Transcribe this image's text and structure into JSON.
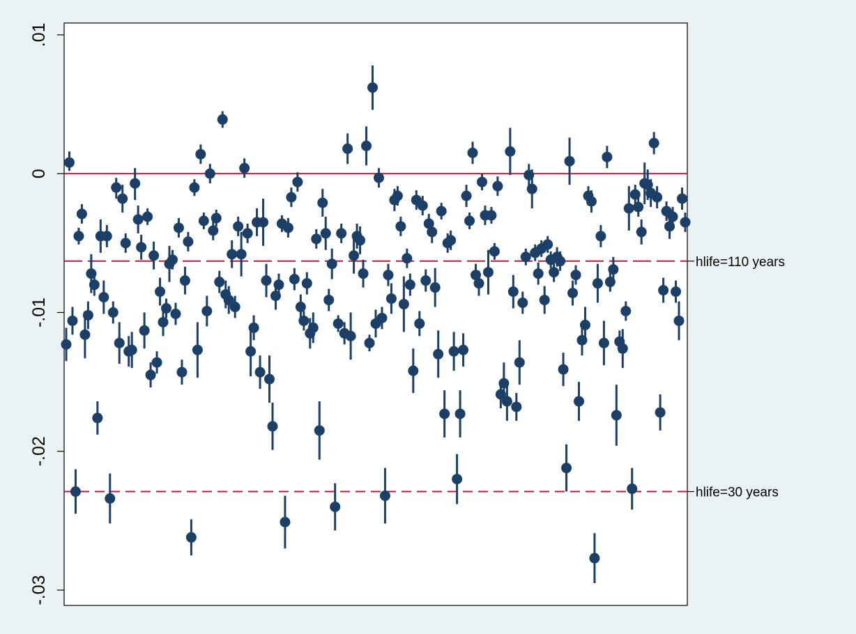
{
  "chart_data": {
    "type": "scatter",
    "title": "",
    "xlabel": "",
    "ylabel": "",
    "ylim": [
      -0.032,
      0.0105
    ],
    "yticks": [
      {
        "value": 0.01,
        "label": ".01"
      },
      {
        "value": 0,
        "label": "0"
      },
      {
        "value": -0.01,
        "label": "-.01"
      },
      {
        "value": -0.02,
        "label": "-.02"
      },
      {
        "value": -0.03,
        "label": "-.03"
      }
    ],
    "xticks_shown": false,
    "grid": false,
    "legend": "none",
    "marker_style": "filled circle with vertical confidence-interval line",
    "colors": {
      "background": "#eaf2f3",
      "plot_area": "#ffffff",
      "marker": "#1b3f66",
      "reference_lines": "#c0143c"
    },
    "reference_lines": [
      {
        "y": 0,
        "style": "solid",
        "label": ""
      },
      {
        "y": -0.0063,
        "style": "long-dash",
        "label": "hlife=110 years"
      },
      {
        "y": -0.0229,
        "style": "dash",
        "label": "hlife=30 years"
      }
    ],
    "points": [
      {
        "y": -0.0123,
        "lo": -0.0135,
        "hi": -0.0111
      },
      {
        "y": 0.0008,
        "lo": 0.0002,
        "hi": 0.0016
      },
      {
        "y": -0.0106,
        "lo": -0.0116,
        "hi": -0.0096
      },
      {
        "y": -0.0229,
        "lo": -0.0245,
        "hi": -0.0213
      },
      {
        "y": -0.0045,
        "lo": -0.0051,
        "hi": -0.0039
      },
      {
        "y": -0.0029,
        "lo": -0.0036,
        "hi": -0.0022
      },
      {
        "y": -0.0116,
        "lo": -0.0133,
        "hi": -0.0099
      },
      {
        "y": -0.0102,
        "lo": -0.0112,
        "hi": -0.0092
      },
      {
        "y": -0.0072,
        "lo": -0.0086,
        "hi": -0.0058
      },
      {
        "y": -0.008,
        "lo": -0.0088,
        "hi": -0.0072
      },
      {
        "y": -0.0176,
        "lo": -0.0188,
        "hi": -0.0164
      },
      {
        "y": -0.0045,
        "lo": -0.0057,
        "hi": -0.0033
      },
      {
        "y": -0.0089,
        "lo": -0.0101,
        "hi": -0.0077
      },
      {
        "y": -0.0045,
        "lo": -0.0053,
        "hi": -0.0037
      },
      {
        "y": -0.0234,
        "lo": -0.0252,
        "hi": -0.0216
      },
      {
        "y": -0.01,
        "lo": -0.0108,
        "hi": -0.0092
      },
      {
        "y": -0.001,
        "lo": -0.0018,
        "hi": -0.0003
      },
      {
        "y": -0.0122,
        "lo": -0.0137,
        "hi": -0.0107
      },
      {
        "y": -0.0018,
        "lo": -0.0028,
        "hi": -0.0008
      },
      {
        "y": -0.005,
        "lo": -0.0057,
        "hi": -0.0043
      },
      {
        "y": -0.0128,
        "lo": -0.0139,
        "hi": -0.0117
      },
      {
        "y": -0.0127,
        "lo": -0.014,
        "hi": -0.0114
      },
      {
        "y": -0.0007,
        "lo": -0.0019,
        "hi": 0.0004
      },
      {
        "y": -0.0033,
        "lo": -0.0043,
        "hi": -0.0023
      },
      {
        "y": -0.0053,
        "lo": -0.0062,
        "hi": -0.0044
      },
      {
        "y": -0.0113,
        "lo": -0.0126,
        "hi": -0.01
      },
      {
        "y": -0.0031,
        "lo": -0.0037,
        "hi": -0.0025
      },
      {
        "y": -0.0145,
        "lo": -0.0154,
        "hi": -0.0136
      },
      {
        "y": -0.0059,
        "lo": -0.0069,
        "hi": -0.0049
      },
      {
        "y": -0.0136,
        "lo": -0.0144,
        "hi": -0.0128
      },
      {
        "y": -0.0085,
        "lo": -0.0095,
        "hi": -0.0075
      },
      {
        "y": -0.0107,
        "lo": -0.0117,
        "hi": -0.0097
      },
      {
        "y": -0.0097,
        "lo": -0.0104,
        "hi": -0.009
      },
      {
        "y": -0.0065,
        "lo": -0.0078,
        "hi": -0.0052
      },
      {
        "y": -0.0062,
        "lo": -0.0069,
        "hi": -0.0055
      },
      {
        "y": -0.0101,
        "lo": -0.0109,
        "hi": -0.0093
      },
      {
        "y": -0.0039,
        "lo": -0.0046,
        "hi": -0.0032
      },
      {
        "y": -0.0143,
        "lo": -0.0152,
        "hi": -0.0134
      },
      {
        "y": -0.0077,
        "lo": -0.0087,
        "hi": -0.0067
      },
      {
        "y": -0.0049,
        "lo": -0.0056,
        "hi": -0.0042
      },
      {
        "y": -0.0262,
        "lo": -0.0275,
        "hi": -0.0249
      },
      {
        "y": -0.001,
        "lo": -0.0016,
        "hi": -0.0004
      },
      {
        "y": -0.0127,
        "lo": -0.0147,
        "hi": -0.0107
      },
      {
        "y": 0.0014,
        "lo": 0.0007,
        "hi": 0.0021
      },
      {
        "y": -0.0034,
        "lo": -0.004,
        "hi": -0.0028
      },
      {
        "y": -0.0099,
        "lo": -0.011,
        "hi": -0.0088
      },
      {
        "y": 0.0,
        "lo": -0.0007,
        "hi": 0.0007
      },
      {
        "y": -0.0041,
        "lo": -0.0048,
        "hi": -0.0034
      },
      {
        "y": -0.0032,
        "lo": -0.0038,
        "hi": -0.0026
      },
      {
        "y": -0.0078,
        "lo": -0.0086,
        "hi": -0.007
      },
      {
        "y": 0.0039,
        "lo": 0.0033,
        "hi": 0.0045
      },
      {
        "y": -0.0087,
        "lo": -0.0097,
        "hi": -0.0077
      },
      {
        "y": -0.0091,
        "lo": -0.0101,
        "hi": -0.0081
      },
      {
        "y": -0.0058,
        "lo": -0.0068,
        "hi": -0.0048
      },
      {
        "y": -0.0096,
        "lo": -0.0104,
        "hi": -0.0088
      },
      {
        "y": -0.0038,
        "lo": -0.0045,
        "hi": -0.0031
      },
      {
        "y": -0.0058,
        "lo": -0.0074,
        "hi": -0.0042
      },
      {
        "y": 0.0004,
        "lo": -0.0003,
        "hi": 0.0011
      },
      {
        "y": -0.0043,
        "lo": -0.005,
        "hi": -0.0036
      },
      {
        "y": -0.0128,
        "lo": -0.0146,
        "hi": -0.011
      },
      {
        "y": -0.0111,
        "lo": -0.012,
        "hi": -0.0102
      },
      {
        "y": -0.0035,
        "lo": -0.0045,
        "hi": -0.0025
      },
      {
        "y": -0.0143,
        "lo": -0.0155,
        "hi": -0.0131
      },
      {
        "y": -0.0035,
        "lo": -0.0052,
        "hi": -0.0018
      },
      {
        "y": -0.0077,
        "lo": -0.0089,
        "hi": -0.0065
      },
      {
        "y": -0.0148,
        "lo": -0.0165,
        "hi": -0.0131
      },
      {
        "y": -0.0182,
        "lo": -0.0199,
        "hi": -0.0165
      },
      {
        "y": -0.0088,
        "lo": -0.0098,
        "hi": -0.0078
      },
      {
        "y": -0.008,
        "lo": -0.0088,
        "hi": -0.0072
      },
      {
        "y": -0.0036,
        "lo": -0.0042,
        "hi": -0.003
      },
      {
        "y": -0.0251,
        "lo": -0.027,
        "hi": -0.0232
      },
      {
        "y": -0.0039,
        "lo": -0.0046,
        "hi": -0.0032
      },
      {
        "y": -0.0017,
        "lo": -0.0024,
        "hi": -0.001
      },
      {
        "y": -0.0076,
        "lo": -0.0084,
        "hi": -0.0068
      },
      {
        "y": -0.0006,
        "lo": -0.0013,
        "hi": 0.0001
      },
      {
        "y": -0.0096,
        "lo": -0.0105,
        "hi": -0.0087
      },
      {
        "y": -0.0106,
        "lo": -0.0113,
        "hi": -0.0099
      },
      {
        "y": -0.0079,
        "lo": -0.0087,
        "hi": -0.0071
      },
      {
        "y": -0.0115,
        "lo": -0.0126,
        "hi": -0.0104
      },
      {
        "y": -0.0111,
        "lo": -0.0122,
        "hi": -0.01
      },
      {
        "y": -0.0047,
        "lo": -0.0054,
        "hi": -0.004
      },
      {
        "y": -0.0185,
        "lo": -0.0206,
        "hi": -0.0164
      },
      {
        "y": -0.0021,
        "lo": -0.0031,
        "hi": -0.0011
      },
      {
        "y": -0.0043,
        "lo": -0.0055,
        "hi": -0.0031
      },
      {
        "y": -0.0091,
        "lo": -0.0099,
        "hi": -0.0083
      },
      {
        "y": -0.0065,
        "lo": -0.0076,
        "hi": -0.0054
      },
      {
        "y": -0.024,
        "lo": -0.0257,
        "hi": -0.0223
      },
      {
        "y": -0.0108,
        "lo": -0.0114,
        "hi": -0.0102
      },
      {
        "y": -0.0043,
        "lo": -0.005,
        "hi": -0.0036
      },
      {
        "y": -0.0115,
        "lo": -0.0123,
        "hi": -0.0107
      },
      {
        "y": 0.0018,
        "lo": 0.0007,
        "hi": 0.0029
      },
      {
        "y": -0.0117,
        "lo": -0.0134,
        "hi": -0.01
      },
      {
        "y": -0.0059,
        "lo": -0.0072,
        "hi": -0.0046
      },
      {
        "y": -0.0045,
        "lo": -0.0054,
        "hi": -0.0036
      },
      {
        "y": -0.0048,
        "lo": -0.0058,
        "hi": -0.0038
      },
      {
        "y": -0.0072,
        "lo": -0.0082,
        "hi": -0.0062
      },
      {
        "y": 0.002,
        "lo": 0.0006,
        "hi": 0.0034
      },
      {
        "y": -0.0122,
        "lo": -0.0128,
        "hi": -0.0116
      },
      {
        "y": 0.0062,
        "lo": 0.0046,
        "hi": 0.0078
      },
      {
        "y": -0.0108,
        "lo": -0.0118,
        "hi": -0.0098
      },
      {
        "y": -0.0003,
        "lo": -0.001,
        "hi": 0.0004
      },
      {
        "y": -0.0104,
        "lo": -0.0112,
        "hi": -0.0096
      },
      {
        "y": -0.0232,
        "lo": -0.0252,
        "hi": -0.0212
      },
      {
        "y": -0.0073,
        "lo": -0.0081,
        "hi": -0.0065
      },
      {
        "y": -0.009,
        "lo": -0.0101,
        "hi": -0.0079
      },
      {
        "y": -0.0019,
        "lo": -0.0027,
        "hi": -0.0011
      },
      {
        "y": -0.0016,
        "lo": -0.0023,
        "hi": -0.0009
      },
      {
        "y": -0.0038,
        "lo": -0.0045,
        "hi": -0.0031
      },
      {
        "y": -0.0094,
        "lo": -0.0114,
        "hi": -0.0074
      },
      {
        "y": -0.0061,
        "lo": -0.0068,
        "hi": -0.0054
      },
      {
        "y": -0.008,
        "lo": -0.0088,
        "hi": -0.0072
      },
      {
        "y": -0.0142,
        "lo": -0.0158,
        "hi": -0.0126
      },
      {
        "y": -0.0019,
        "lo": -0.0026,
        "hi": -0.0012
      },
      {
        "y": -0.0108,
        "lo": -0.0117,
        "hi": -0.0099
      },
      {
        "y": -0.0023,
        "lo": -0.003,
        "hi": -0.0016
      },
      {
        "y": -0.0077,
        "lo": -0.0085,
        "hi": -0.0069
      },
      {
        "y": -0.0036,
        "lo": -0.0043,
        "hi": -0.0029
      },
      {
        "y": -0.0042,
        "lo": -0.005,
        "hi": -0.0034
      },
      {
        "y": -0.0082,
        "lo": -0.0096,
        "hi": -0.0068
      },
      {
        "y": -0.013,
        "lo": -0.0147,
        "hi": -0.0113
      },
      {
        "y": -0.0027,
        "lo": -0.0033,
        "hi": -0.0021
      },
      {
        "y": -0.0173,
        "lo": -0.019,
        "hi": -0.0156
      },
      {
        "y": -0.005,
        "lo": -0.0057,
        "hi": -0.0043
      },
      {
        "y": -0.0048,
        "lo": -0.0055,
        "hi": -0.0041
      },
      {
        "y": -0.0128,
        "lo": -0.0142,
        "hi": -0.0114
      },
      {
        "y": -0.022,
        "lo": -0.0238,
        "hi": -0.0202
      },
      {
        "y": -0.0173,
        "lo": -0.019,
        "hi": -0.0156
      },
      {
        "y": -0.0127,
        "lo": -0.0139,
        "hi": -0.0115
      },
      {
        "y": -0.0016,
        "lo": -0.0024,
        "hi": -0.0008
      },
      {
        "y": -0.0034,
        "lo": -0.004,
        "hi": -0.0028
      },
      {
        "y": 0.0015,
        "lo": 0.0007,
        "hi": 0.0023
      },
      {
        "y": -0.0073,
        "lo": -0.0081,
        "hi": -0.0065
      },
      {
        "y": -0.0079,
        "lo": -0.0088,
        "hi": -0.007
      },
      {
        "y": -0.0006,
        "lo": -0.0012,
        "hi": 0.0
      },
      {
        "y": -0.003,
        "lo": -0.0037,
        "hi": -0.0023
      },
      {
        "y": -0.0071,
        "lo": -0.0087,
        "hi": -0.0055
      },
      {
        "y": -0.003,
        "lo": -0.0036,
        "hi": -0.0024
      },
      {
        "y": -0.0056,
        "lo": -0.0062,
        "hi": -0.005
      },
      {
        "y": -0.0009,
        "lo": -0.0016,
        "hi": -0.0002
      },
      {
        "y": -0.0159,
        "lo": -0.0169,
        "hi": -0.0149
      },
      {
        "y": -0.0151,
        "lo": -0.0166,
        "hi": -0.0136
      },
      {
        "y": -0.0164,
        "lo": -0.0178,
        "hi": -0.015
      },
      {
        "y": 0.0016,
        "lo": -0.0001,
        "hi": 0.0033
      },
      {
        "y": -0.0085,
        "lo": -0.0097,
        "hi": -0.0073
      },
      {
        "y": -0.0168,
        "lo": -0.0178,
        "hi": -0.0158
      },
      {
        "y": -0.0136,
        "lo": -0.0152,
        "hi": -0.012
      },
      {
        "y": -0.0093,
        "lo": -0.0101,
        "hi": -0.0085
      },
      {
        "y": -0.006,
        "lo": -0.0066,
        "hi": -0.0054
      },
      {
        "y": -0.0001,
        "lo": -0.0009,
        "hi": 0.0007
      },
      {
        "y": -0.0011,
        "lo": -0.0025,
        "hi": 0.0003
      },
      {
        "y": -0.0057,
        "lo": -0.0063,
        "hi": -0.0051
      },
      {
        "y": -0.0072,
        "lo": -0.008,
        "hi": -0.0064
      },
      {
        "y": -0.0054,
        "lo": -0.006,
        "hi": -0.0048
      },
      {
        "y": -0.0091,
        "lo": -0.0101,
        "hi": -0.0081
      },
      {
        "y": -0.0051,
        "lo": -0.0057,
        "hi": -0.0045
      },
      {
        "y": -0.0062,
        "lo": -0.0068,
        "hi": -0.0056
      },
      {
        "y": -0.0071,
        "lo": -0.0078,
        "hi": -0.0064
      },
      {
        "y": -0.006,
        "lo": -0.0067,
        "hi": -0.0053
      },
      {
        "y": -0.0063,
        "lo": -0.007,
        "hi": -0.0056
      },
      {
        "y": -0.0141,
        "lo": -0.0153,
        "hi": -0.0129
      },
      {
        "y": -0.0212,
        "lo": -0.0229,
        "hi": -0.0195
      },
      {
        "y": 0.0009,
        "lo": -0.0008,
        "hi": 0.0026
      },
      {
        "y": -0.0086,
        "lo": -0.0095,
        "hi": -0.0077
      },
      {
        "y": -0.0073,
        "lo": -0.008,
        "hi": -0.0066
      },
      {
        "y": -0.0164,
        "lo": -0.0178,
        "hi": -0.015
      },
      {
        "y": -0.012,
        "lo": -0.0131,
        "hi": -0.0109
      },
      {
        "y": -0.0109,
        "lo": -0.0122,
        "hi": -0.0096
      },
      {
        "y": -0.0016,
        "lo": -0.0023,
        "hi": -0.0009
      },
      {
        "y": -0.002,
        "lo": -0.0028,
        "hi": -0.0012
      },
      {
        "y": -0.0277,
        "lo": -0.0295,
        "hi": -0.0259
      },
      {
        "y": -0.0079,
        "lo": -0.0093,
        "hi": -0.0065
      },
      {
        "y": -0.0045,
        "lo": -0.0053,
        "hi": -0.0037
      },
      {
        "y": -0.0122,
        "lo": -0.0138,
        "hi": -0.0106
      },
      {
        "y": 0.0012,
        "lo": 0.0004,
        "hi": 0.002
      },
      {
        "y": -0.0078,
        "lo": -0.0085,
        "hi": -0.0071
      },
      {
        "y": -0.0069,
        "lo": -0.0078,
        "hi": -0.006
      },
      {
        "y": -0.0174,
        "lo": -0.0196,
        "hi": -0.0152
      },
      {
        "y": -0.0121,
        "lo": -0.0129,
        "hi": -0.0113
      },
      {
        "y": -0.0126,
        "lo": -0.014,
        "hi": -0.0112
      },
      {
        "y": -0.0099,
        "lo": -0.0106,
        "hi": -0.0092
      },
      {
        "y": -0.0025,
        "lo": -0.0041,
        "hi": -0.0009
      },
      {
        "y": -0.0227,
        "lo": -0.0242,
        "hi": -0.0212
      },
      {
        "y": -0.0015,
        "lo": -0.0022,
        "hi": -0.0008
      },
      {
        "y": -0.0024,
        "lo": -0.0031,
        "hi": -0.0017
      },
      {
        "y": -0.0042,
        "lo": -0.0051,
        "hi": -0.0033
      },
      {
        "y": -0.0007,
        "lo": -0.0022,
        "hi": 0.0008
      },
      {
        "y": -0.0008,
        "lo": -0.0019,
        "hi": 0.0003
      },
      {
        "y": -0.0014,
        "lo": -0.0024,
        "hi": -0.0004
      },
      {
        "y": 0.0022,
        "lo": 0.0014,
        "hi": 0.003
      },
      {
        "y": -0.0017,
        "lo": -0.0025,
        "hi": -0.0009
      },
      {
        "y": -0.0172,
        "lo": -0.0185,
        "hi": -0.0159
      },
      {
        "y": -0.0084,
        "lo": -0.0093,
        "hi": -0.0075
      },
      {
        "y": -0.0027,
        "lo": -0.0034,
        "hi": -0.002
      },
      {
        "y": -0.0038,
        "lo": -0.0047,
        "hi": -0.0029
      },
      {
        "y": -0.0031,
        "lo": -0.0038,
        "hi": -0.0024
      },
      {
        "y": -0.0085,
        "lo": -0.0093,
        "hi": -0.0077
      },
      {
        "y": -0.0106,
        "lo": -0.012,
        "hi": -0.0092
      },
      {
        "y": -0.0018,
        "lo": -0.0026,
        "hi": -0.001
      },
      {
        "y": -0.0035,
        "lo": -0.0042,
        "hi": -0.0028
      }
    ]
  }
}
